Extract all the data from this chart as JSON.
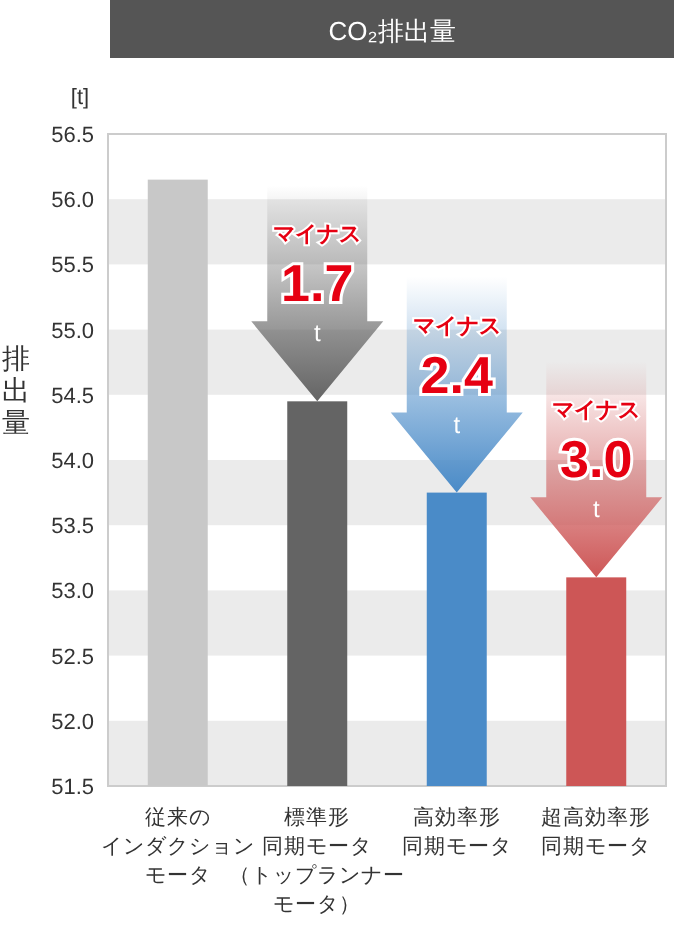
{
  "chart_data": {
    "type": "bar",
    "title": "CO₂排出量",
    "ylabel": "排出量",
    "categories": [
      "従来のインダクションモータ",
      "標準形同期モータ（トップランナーモータ）",
      "高効率形同期モータ",
      "超高効率形同期モータ"
    ],
    "values": [
      56.15,
      54.45,
      53.75,
      53.1
    ],
    "colors": [
      "#c8c8c8",
      "#646464",
      "#4a8bc8",
      "#cd5656"
    ],
    "ylim": [
      51.5,
      56.5
    ],
    "yticks": [
      51.5,
      {
        "value": 52,
        "label": "52.0"
      },
      52.5,
      {
        "value": 53,
        "label": "53.0"
      },
      53.5,
      {
        "value": 54,
        "label": "54.0"
      },
      54.5,
      {
        "value": 55,
        "label": "55.0"
      },
      55.5,
      {
        "value": 56,
        "label": "56.0"
      },
      56.5
    ],
    "bands": [
      {
        "axis": "y",
        "from": 51.5,
        "to": 52,
        "color": "#ebebeb"
      },
      {
        "axis": "y",
        "from": 52.5,
        "to": 53,
        "color": "#ebebeb"
      },
      {
        "axis": "y",
        "from": 53.5,
        "to": 54,
        "color": "#ebebeb"
      },
      {
        "axis": "y",
        "from": 54.5,
        "to": 55,
        "color": "#ebebeb"
      },
      {
        "axis": "y",
        "from": 55.5,
        "to": 56,
        "color": "#ebebeb"
      }
    ],
    "annotations": [
      "[t]",
      {
        "text": "マイナス\n1.7\nt",
        "x": "標準形同期モータ（トップランナーモータ）",
        "y": 54.45
      },
      {
        "text": "マイナス\n2.4\nt",
        "x": "高効率形同期モータ",
        "y": 53.75
      },
      {
        "text": "マイナス\n3.0\nt",
        "x": "超高効率形同期モータ",
        "y": 53.1
      }
    ]
  }
}
